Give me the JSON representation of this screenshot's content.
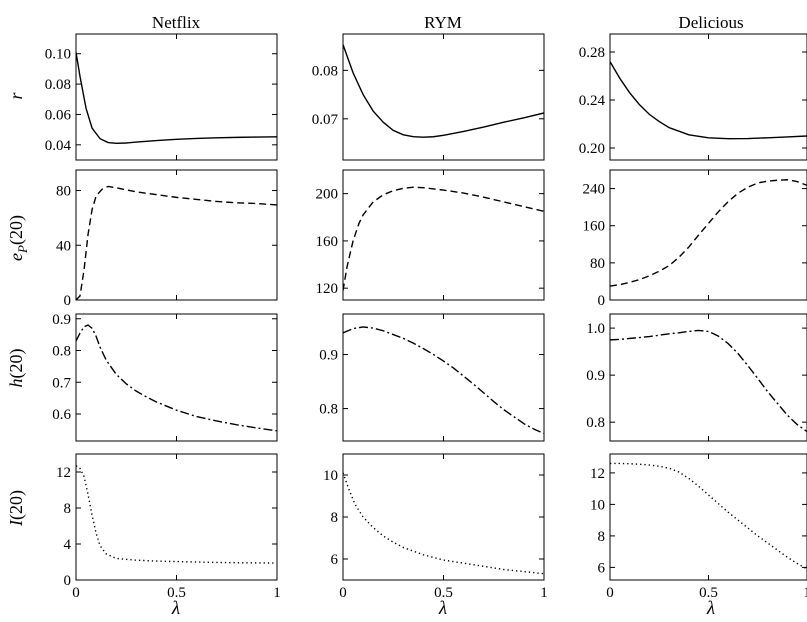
{
  "columns": [
    "Netflix",
    "RYM",
    "Delicious"
  ],
  "row_labels": {
    "r": {
      "main": "r",
      "sub": ""
    },
    "ep": {
      "main": "e",
      "sub": "P",
      "suffix": "(20)"
    },
    "h": {
      "main": "h",
      "sub": "",
      "suffix": "(20)"
    },
    "I": {
      "main": "I",
      "sub": "",
      "suffix": "(20)"
    }
  },
  "xlabel": "λ",
  "chart_data": [
    {
      "type": "line",
      "dataset": "Netflix",
      "metric": "r",
      "line_style": "solid",
      "xlim": [
        0,
        1
      ],
      "ylim": [
        0.03,
        0.113
      ],
      "yticks": [
        0.04,
        0.06,
        0.08,
        0.1
      ],
      "ytick_labels": [
        "0.04",
        "0.06",
        "0.08",
        "0.10"
      ],
      "xticks": [
        0,
        0.5,
        1
      ],
      "xtick_labels": [
        "0",
        "0.5",
        "1"
      ],
      "series": [
        {
          "x": [
            0,
            0.02,
            0.05,
            0.08,
            0.12,
            0.16,
            0.2,
            0.25,
            0.3,
            0.4,
            0.5,
            0.6,
            0.7,
            0.8,
            0.9,
            1.0
          ],
          "y": [
            0.101,
            0.085,
            0.064,
            0.051,
            0.044,
            0.0415,
            0.041,
            0.0412,
            0.0418,
            0.0428,
            0.0436,
            0.0442,
            0.0446,
            0.0449,
            0.0451,
            0.0453
          ]
        }
      ]
    },
    {
      "type": "line",
      "dataset": "RYM",
      "metric": "r",
      "line_style": "solid",
      "xlim": [
        0,
        1
      ],
      "ylim": [
        0.0615,
        0.0875
      ],
      "yticks": [
        0.07,
        0.08
      ],
      "ytick_labels": [
        "0.07",
        "0.08"
      ],
      "xticks": [
        0,
        0.5,
        1
      ],
      "xtick_labels": [
        "0",
        "0.5",
        "1"
      ],
      "series": [
        {
          "x": [
            0,
            0.05,
            0.1,
            0.15,
            0.2,
            0.25,
            0.3,
            0.35,
            0.4,
            0.45,
            0.5,
            0.6,
            0.7,
            0.8,
            0.9,
            1.0
          ],
          "y": [
            0.0853,
            0.0795,
            0.075,
            0.0716,
            0.0693,
            0.0676,
            0.0667,
            0.0663,
            0.0662,
            0.0663,
            0.0666,
            0.0674,
            0.0683,
            0.0693,
            0.0702,
            0.0712
          ]
        }
      ]
    },
    {
      "type": "line",
      "dataset": "Delicious",
      "metric": "r",
      "line_style": "solid",
      "xlim": [
        0,
        1
      ],
      "ylim": [
        0.19,
        0.295
      ],
      "yticks": [
        0.2,
        0.24,
        0.28
      ],
      "ytick_labels": [
        "0.20",
        "0.24",
        "0.28"
      ],
      "xticks": [
        0,
        0.5,
        1
      ],
      "xtick_labels": [
        "0",
        "0.5",
        "1"
      ],
      "series": [
        {
          "x": [
            0,
            0.05,
            0.1,
            0.15,
            0.2,
            0.25,
            0.3,
            0.35,
            0.4,
            0.5,
            0.6,
            0.7,
            0.8,
            0.9,
            1.0
          ],
          "y": [
            0.272,
            0.258,
            0.246,
            0.236,
            0.228,
            0.222,
            0.217,
            0.214,
            0.211,
            0.2085,
            0.2078,
            0.2079,
            0.2085,
            0.2092,
            0.21
          ]
        }
      ]
    },
    {
      "type": "line",
      "dataset": "Netflix",
      "metric": "e_P(20)",
      "line_style": "dashed",
      "xlim": [
        0,
        1
      ],
      "ylim": [
        0,
        95
      ],
      "yticks": [
        0,
        40,
        80
      ],
      "ytick_labels": [
        "0",
        "40",
        "80"
      ],
      "xticks": [
        0,
        0.5,
        1
      ],
      "xtick_labels": [
        "0",
        "0.5",
        "1"
      ],
      "series": [
        {
          "x": [
            0,
            0.02,
            0.04,
            0.06,
            0.08,
            0.1,
            0.13,
            0.16,
            0.2,
            0.3,
            0.4,
            0.5,
            0.6,
            0.7,
            0.8,
            0.9,
            1.0
          ],
          "y": [
            0,
            3,
            22,
            48,
            66,
            76,
            81,
            83,
            82,
            79,
            77,
            75,
            73.5,
            72,
            71,
            70.5,
            69.5
          ]
        }
      ]
    },
    {
      "type": "line",
      "dataset": "RYM",
      "metric": "e_P(20)",
      "line_style": "dashed",
      "xlim": [
        0,
        1
      ],
      "ylim": [
        110,
        220
      ],
      "yticks": [
        120,
        160,
        200
      ],
      "ytick_labels": [
        "120",
        "160",
        "200"
      ],
      "xticks": [
        0,
        0.5,
        1
      ],
      "xtick_labels": [
        "0",
        "0.5",
        "1"
      ],
      "series": [
        {
          "x": [
            0,
            0.02,
            0.05,
            0.08,
            0.1,
            0.15,
            0.2,
            0.25,
            0.3,
            0.35,
            0.4,
            0.5,
            0.6,
            0.7,
            0.8,
            0.9,
            1.0
          ],
          "y": [
            118,
            138,
            160,
            175,
            182,
            193,
            199,
            202.5,
            204.5,
            205.5,
            205,
            203,
            200.5,
            197,
            193,
            189,
            185
          ]
        }
      ]
    },
    {
      "type": "line",
      "dataset": "Delicious",
      "metric": "e_P(20)",
      "line_style": "dashed",
      "xlim": [
        0,
        1
      ],
      "ylim": [
        0,
        280
      ],
      "yticks": [
        0,
        80,
        160,
        240
      ],
      "ytick_labels": [
        "0",
        "80",
        "160",
        "240"
      ],
      "xticks": [
        0,
        0.5,
        1
      ],
      "xtick_labels": [
        "0",
        "0.5",
        "1"
      ],
      "series": [
        {
          "x": [
            0,
            0.05,
            0.1,
            0.15,
            0.2,
            0.25,
            0.3,
            0.35,
            0.4,
            0.45,
            0.5,
            0.55,
            0.6,
            0.65,
            0.7,
            0.75,
            0.8,
            0.85,
            0.9,
            0.95,
            1.0
          ],
          "y": [
            30,
            33,
            38,
            44,
            52,
            62,
            74,
            92,
            114,
            140,
            165,
            190,
            212,
            230,
            243,
            252,
            256,
            258,
            259,
            255,
            247
          ]
        }
      ]
    },
    {
      "type": "line",
      "dataset": "Netflix",
      "metric": "h(20)",
      "line_style": "dashdot",
      "xlim": [
        0,
        1
      ],
      "ylim": [
        0.515,
        0.915
      ],
      "yticks": [
        0.6,
        0.7,
        0.8,
        0.9
      ],
      "ytick_labels": [
        "0.6",
        "0.7",
        "0.8",
        "0.9"
      ],
      "xticks": [
        0,
        0.5,
        1
      ],
      "xtick_labels": [
        "0",
        "0.5",
        "1"
      ],
      "series": [
        {
          "x": [
            0,
            0.02,
            0.04,
            0.06,
            0.08,
            0.1,
            0.12,
            0.15,
            0.2,
            0.25,
            0.3,
            0.35,
            0.4,
            0.5,
            0.6,
            0.7,
            0.8,
            0.9,
            1.0
          ],
          "y": [
            0.83,
            0.855,
            0.875,
            0.88,
            0.87,
            0.845,
            0.81,
            0.77,
            0.725,
            0.695,
            0.672,
            0.654,
            0.638,
            0.612,
            0.592,
            0.578,
            0.566,
            0.556,
            0.547
          ]
        }
      ]
    },
    {
      "type": "line",
      "dataset": "RYM",
      "metric": "h(20)",
      "line_style": "dashdot",
      "xlim": [
        0,
        1
      ],
      "ylim": [
        0.74,
        0.975
      ],
      "yticks": [
        0.8,
        0.9
      ],
      "ytick_labels": [
        "0.8",
        "0.9"
      ],
      "xticks": [
        0,
        0.5,
        1
      ],
      "xtick_labels": [
        "0",
        "0.5",
        "1"
      ],
      "series": [
        {
          "x": [
            0,
            0.05,
            0.1,
            0.15,
            0.2,
            0.25,
            0.3,
            0.35,
            0.4,
            0.45,
            0.5,
            0.55,
            0.6,
            0.65,
            0.7,
            0.75,
            0.8,
            0.85,
            0.9,
            0.95,
            1.0
          ],
          "y": [
            0.94,
            0.948,
            0.951,
            0.949,
            0.944,
            0.937,
            0.93,
            0.921,
            0.911,
            0.9,
            0.888,
            0.875,
            0.86,
            0.845,
            0.829,
            0.813,
            0.798,
            0.785,
            0.772,
            0.762,
            0.754
          ]
        }
      ]
    },
    {
      "type": "line",
      "dataset": "Delicious",
      "metric": "h(20)",
      "line_style": "dashdot",
      "xlim": [
        0,
        1
      ],
      "ylim": [
        0.76,
        1.03
      ],
      "yticks": [
        0.8,
        0.9,
        1.0
      ],
      "ytick_labels": [
        "0.8",
        "0.9",
        "1.0"
      ],
      "xticks": [
        0,
        0.5,
        1
      ],
      "xtick_labels": [
        "0",
        "0.5",
        "1"
      ],
      "series": [
        {
          "x": [
            0,
            0.05,
            0.1,
            0.15,
            0.2,
            0.25,
            0.3,
            0.35,
            0.4,
            0.45,
            0.5,
            0.55,
            0.6,
            0.65,
            0.7,
            0.75,
            0.8,
            0.85,
            0.9,
            0.95,
            1.0
          ],
          "y": [
            0.975,
            0.976,
            0.978,
            0.98,
            0.982,
            0.985,
            0.988,
            0.99,
            0.993,
            0.995,
            0.993,
            0.983,
            0.967,
            0.946,
            0.92,
            0.893,
            0.865,
            0.84,
            0.815,
            0.795,
            0.78
          ]
        }
      ]
    },
    {
      "type": "line",
      "dataset": "Netflix",
      "metric": "I(20)",
      "line_style": "dotted",
      "xlim": [
        0,
        1
      ],
      "ylim": [
        0,
        14
      ],
      "yticks": [
        0,
        4,
        8,
        12
      ],
      "ytick_labels": [
        "0",
        "4",
        "8",
        "12"
      ],
      "xticks": [
        0,
        0.5,
        1
      ],
      "xtick_labels": [
        "0",
        "0.5",
        "1"
      ],
      "series": [
        {
          "x": [
            0,
            0.02,
            0.04,
            0.06,
            0.08,
            0.1,
            0.12,
            0.15,
            0.2,
            0.3,
            0.4,
            0.5,
            0.6,
            0.7,
            0.8,
            0.9,
            1.0
          ],
          "y": [
            12.7,
            12.4,
            11.5,
            9.5,
            7.2,
            5.2,
            3.8,
            2.9,
            2.4,
            2.2,
            2.1,
            2.05,
            2.0,
            1.95,
            1.92,
            1.9,
            1.88
          ]
        }
      ]
    },
    {
      "type": "line",
      "dataset": "RYM",
      "metric": "I(20)",
      "line_style": "dotted",
      "xlim": [
        0,
        1
      ],
      "ylim": [
        5,
        11
      ],
      "yticks": [
        6,
        8,
        10
      ],
      "ytick_labels": [
        "6",
        "8",
        "10"
      ],
      "xticks": [
        0,
        0.5,
        1
      ],
      "xtick_labels": [
        "0",
        "0.5",
        "1"
      ],
      "series": [
        {
          "x": [
            0,
            0.03,
            0.06,
            0.1,
            0.15,
            0.2,
            0.25,
            0.3,
            0.4,
            0.5,
            0.6,
            0.7,
            0.8,
            0.9,
            1.0
          ],
          "y": [
            10.1,
            9.3,
            8.6,
            8.0,
            7.5,
            7.1,
            6.8,
            6.55,
            6.2,
            5.95,
            5.8,
            5.65,
            5.5,
            5.4,
            5.3
          ]
        }
      ]
    },
    {
      "type": "line",
      "dataset": "Delicious",
      "metric": "I(20)",
      "line_style": "dotted",
      "xlim": [
        0,
        1
      ],
      "ylim": [
        5.2,
        13.2
      ],
      "yticks": [
        6,
        8,
        10,
        12
      ],
      "ytick_labels": [
        "6",
        "8",
        "10",
        "12"
      ],
      "xticks": [
        0,
        0.5,
        1
      ],
      "xtick_labels": [
        "0",
        "0.5",
        "1"
      ],
      "series": [
        {
          "x": [
            0,
            0.05,
            0.1,
            0.15,
            0.2,
            0.25,
            0.3,
            0.35,
            0.4,
            0.45,
            0.5,
            0.55,
            0.6,
            0.65,
            0.7,
            0.75,
            0.8,
            0.85,
            0.9,
            0.95,
            1.0
          ],
          "y": [
            12.6,
            12.6,
            12.58,
            12.55,
            12.5,
            12.42,
            12.3,
            12.05,
            11.65,
            11.15,
            10.6,
            10.05,
            9.5,
            9.0,
            8.5,
            8.0,
            7.55,
            7.1,
            6.65,
            6.25,
            5.9
          ]
        }
      ]
    }
  ]
}
